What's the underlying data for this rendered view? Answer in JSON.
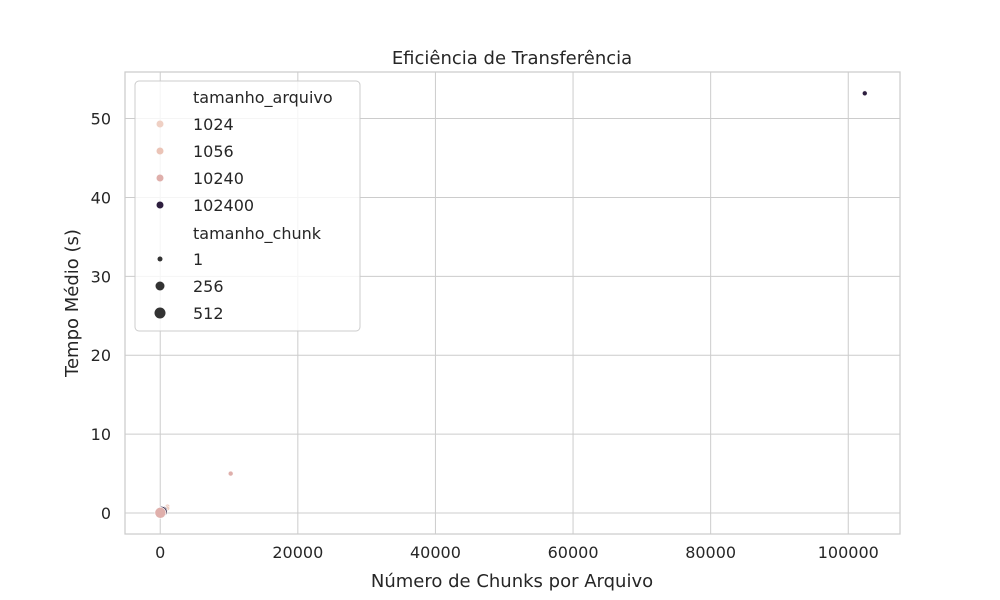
{
  "chart_data": {
    "type": "scatter",
    "title": "Eficiência de Transferência",
    "xlabel": "Número de Chunks por Arquivo",
    "ylabel": "Tempo Médio (s)",
    "xlim": [
      -5120,
      107520
    ],
    "ylim": [
      -2.66,
      55.9
    ],
    "xticks": [
      0,
      20000,
      40000,
      60000,
      80000,
      100000
    ],
    "yticks": [
      0,
      10,
      20,
      30,
      40,
      50
    ],
    "grid": true,
    "legend": {
      "placement": "top-left",
      "hue_title": "tamanho_arquivo",
      "hue_entries": [
        {
          "label": "1024",
          "color": "#efd0c4"
        },
        {
          "label": "1056",
          "color": "#ebc4b7"
        },
        {
          "label": "10240",
          "color": "#dfafab"
        },
        {
          "label": "102400",
          "color": "#2d1e3e"
        }
      ],
      "size_title": "tamanho_chunk",
      "size_entries": [
        {
          "label": "1",
          "radius": 2.5
        },
        {
          "label": "256",
          "radius": 4.5
        },
        {
          "label": "512",
          "radius": 5.5
        }
      ]
    },
    "points": [
      {
        "x": 102400,
        "y": 53.2,
        "tamanho_arquivo": "102400",
        "tamanho_chunk": "1"
      },
      {
        "x": 10240,
        "y": 5.0,
        "tamanho_arquivo": "10240",
        "tamanho_chunk": "1"
      },
      {
        "x": 1056,
        "y": 0.8,
        "tamanho_arquivo": "1056",
        "tamanho_chunk": "1"
      },
      {
        "x": 1024,
        "y": 0.6,
        "tamanho_arquivo": "1024",
        "tamanho_chunk": "1"
      },
      {
        "x": 400,
        "y": 0.3,
        "tamanho_arquivo": "102400",
        "tamanho_chunk": "256"
      },
      {
        "x": 200,
        "y": 0.15,
        "tamanho_arquivo": "102400",
        "tamanho_chunk": "512"
      },
      {
        "x": 40,
        "y": 0.05,
        "tamanho_arquivo": "10240",
        "tamanho_chunk": "256"
      },
      {
        "x": 20,
        "y": 0.03,
        "tamanho_arquivo": "10240",
        "tamanho_chunk": "512"
      }
    ]
  }
}
